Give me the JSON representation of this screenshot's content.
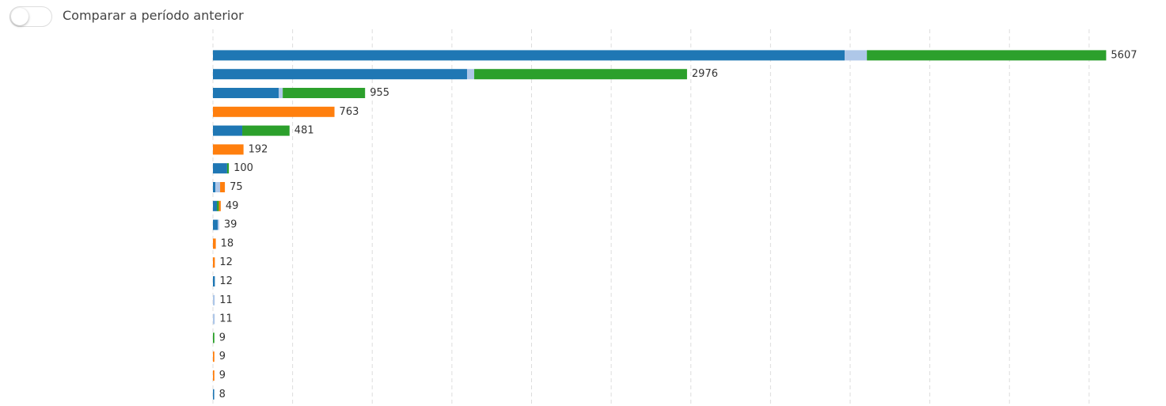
{
  "toggle_label": "Comparar a período anterior",
  "chart_data": {
    "type": "stacked-barh",
    "categories": [
      null,
      null,
      null,
      null,
      null,
      null,
      null,
      null,
      null,
      null,
      null,
      null,
      null,
      null,
      null,
      null,
      null,
      null,
      null
    ],
    "series": [
      {
        "color": "#1f77b4",
        "values": [
          3966,
          1595,
          413,
          null,
          184,
          null,
          89,
          15,
          25,
          30,
          null,
          null,
          12,
          null,
          null,
          null,
          null,
          null,
          8
        ]
      },
      {
        "color": "#aec7e8",
        "values": [
          139,
          45,
          25,
          null,
          null,
          null,
          null,
          30,
          null,
          9,
          null,
          null,
          null,
          11,
          11,
          null,
          null,
          null,
          null
        ]
      },
      {
        "color": "#2ca02c",
        "values": [
          1502,
          1336,
          517,
          null,
          297,
          null,
          11,
          null,
          12,
          null,
          null,
          null,
          null,
          null,
          null,
          9,
          null,
          null,
          null
        ]
      },
      {
        "color": "#ff7f0e",
        "values": [
          null,
          null,
          null,
          763,
          null,
          192,
          null,
          30,
          12,
          null,
          18,
          12,
          null,
          null,
          null,
          null,
          9,
          9,
          null
        ]
      }
    ],
    "totals": [
      5607,
      2976,
      955,
      763,
      481,
      192,
      100,
      75,
      49,
      39,
      18,
      12,
      12,
      11,
      11,
      9,
      9,
      9,
      8
    ],
    "xlim": [
      0,
      5600
    ],
    "xticks": [
      0,
      500,
      1000,
      1500,
      2000,
      2500,
      3000,
      3500,
      4000,
      4500,
      5000,
      5500
    ],
    "grid": true
  }
}
